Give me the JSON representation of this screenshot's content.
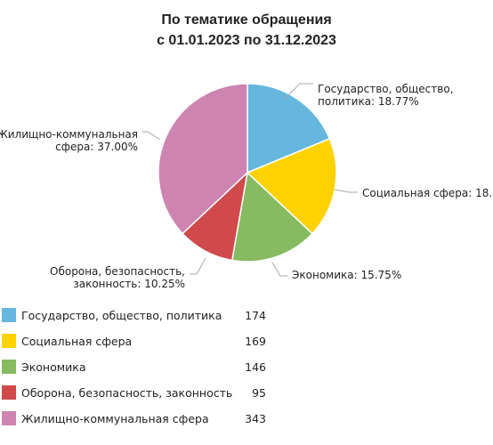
{
  "chart_data": {
    "type": "pie",
    "title_lines": [
      "По тематике обращения",
      "с 01.01.2023 по 31.12.2023"
    ],
    "slices": [
      {
        "name": "Государство, общество, политика",
        "value": 174,
        "color": "#66b7dd",
        "label_lines": [
          "Государство, общество,",
          "политика: 18.77%"
        ]
      },
      {
        "name": "Социальная сфера",
        "value": 169,
        "color": "#fed200",
        "label_lines": [
          "Социальная сфера: 18."
        ]
      },
      {
        "name": "Экономика",
        "value": 146,
        "color": "#87bb62",
        "label_lines": [
          "Экономика: 15.75%"
        ]
      },
      {
        "name": "Оборона, безопасность, законность",
        "value": 95,
        "color": "#d04a4b",
        "label_lines": [
          "Оборона, безопасность,",
          "законность: 10.25%"
        ]
      },
      {
        "name": "Жилищно-коммунальная сфера",
        "value": 343,
        "color": "#cd84b0",
        "label_lines": [
          "Жилищно-коммунальная",
          "сфера: 37.00%"
        ]
      }
    ],
    "legend_position": "bottom-left"
  }
}
